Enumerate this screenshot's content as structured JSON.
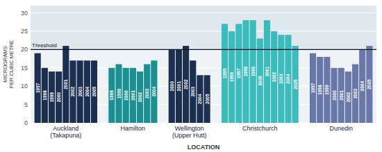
{
  "chart_data": {
    "type": "bar",
    "xlabel": "LOCATION",
    "ylabel": "MICROGRAMS\nPER CUBIC METRE",
    "ylim": [
      0,
      32
    ],
    "yticks": [
      0,
      5,
      10,
      15,
      20,
      25,
      30
    ],
    "grid": true,
    "annotations": [
      {
        "label": "Threshold",
        "value": 20
      }
    ],
    "series": [
      {
        "name": "Auckland\n(Takapuna)",
        "color": "#1b2f4e",
        "categories": [
          "1997",
          "1998",
          "1999",
          "2000",
          "2001",
          "2002",
          "2003",
          "2004",
          "2005"
        ],
        "values": [
          19,
          15,
          14,
          14,
          21,
          17,
          17,
          17,
          17
        ]
      },
      {
        "name": "Hamilton",
        "color": "#1a9090",
        "categories": [
          "1998",
          "1999",
          "2000",
          "2001",
          "2002",
          "2003",
          "2004"
        ],
        "values": [
          15,
          16,
          15,
          15,
          14,
          16,
          17
        ]
      },
      {
        "name": "Wellington\n(Upper Hutt)",
        "color": "#1b2f4e",
        "categories": [
          "2000",
          "2001",
          "2002",
          "2003",
          "2004",
          "2005"
        ],
        "values": [
          20,
          20,
          21,
          17,
          13,
          13
        ]
      },
      {
        "name": "Christchurch",
        "color": "#3bbcbc",
        "categories": [
          "1995",
          "1996",
          "1997",
          "1998",
          "1999",
          "2000",
          "2001",
          "2002",
          "2003",
          "2004",
          "2005"
        ],
        "values": [
          27,
          25,
          27,
          28,
          28,
          23,
          28,
          25,
          24,
          24,
          21
        ]
      },
      {
        "name": "Dunedin",
        "color": "#6878a8",
        "categories": [
          "1997",
          "1998",
          "1999",
          "2000",
          "2001",
          "2002",
          "2003",
          "2004",
          "2005"
        ],
        "values": [
          19,
          18,
          18,
          15,
          15,
          14,
          16,
          20,
          21
        ]
      }
    ]
  }
}
